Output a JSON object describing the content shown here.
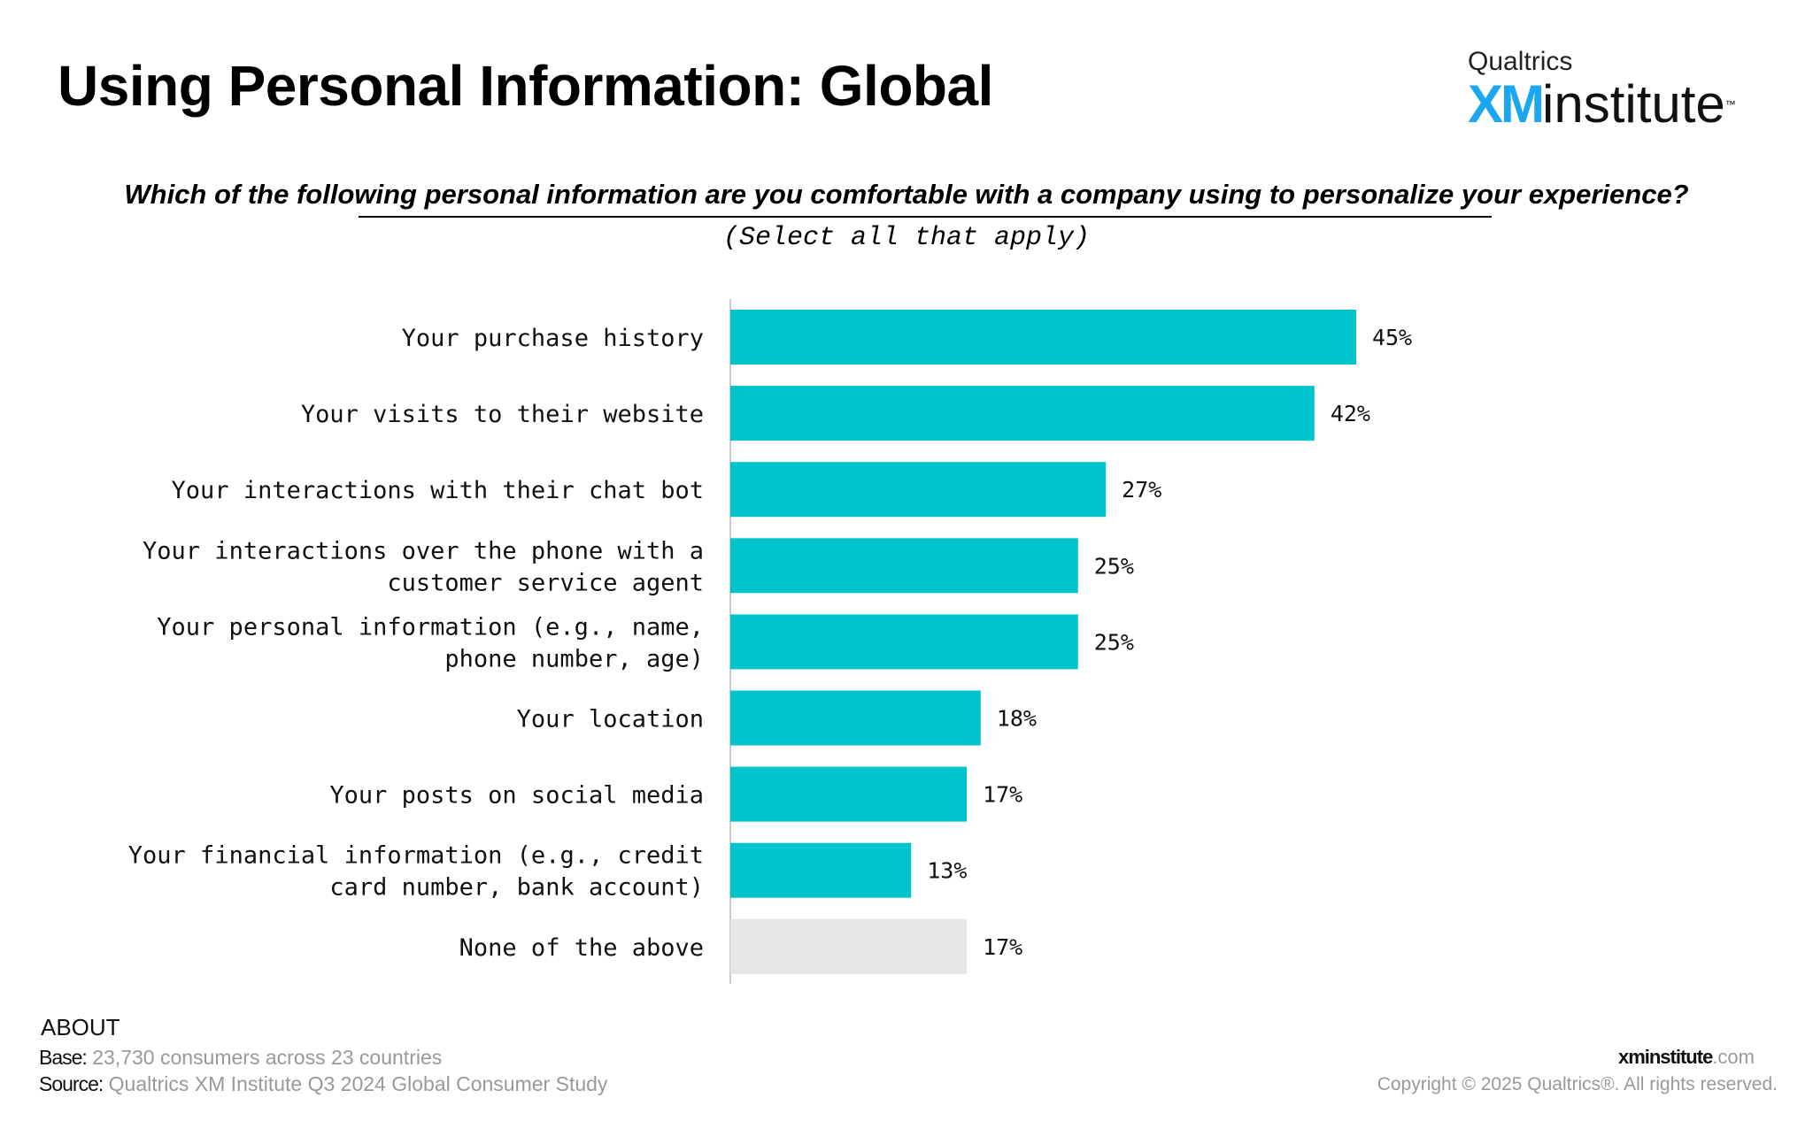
{
  "title": "Using Personal Information: Global",
  "logo": {
    "top_text": "Qualtrics",
    "xm": "XM",
    "institute": "institute",
    "tm": "™"
  },
  "question": "Which of the following personal information are you comfortable with a company using to personalize your experience?",
  "instruction": "(Select all that apply)",
  "chart_data": {
    "type": "bar",
    "orientation": "horizontal",
    "categories": [
      [
        "Your purchase history"
      ],
      [
        "Your visits to their website"
      ],
      [
        "Your interactions with their chat bot"
      ],
      [
        "Your interactions over the phone with a",
        "customer service agent"
      ],
      [
        "Your personal information (e.g., name,",
        "phone number, age)"
      ],
      [
        "Your location"
      ],
      [
        "Your posts on social media"
      ],
      [
        "Your financial information (e.g., credit",
        "card number, bank account)"
      ],
      [
        "None of the above"
      ]
    ],
    "values": [
      45,
      42,
      27,
      25,
      25,
      18,
      17,
      13,
      17
    ],
    "value_labels": [
      "45%",
      "42%",
      "27%",
      "25%",
      "25%",
      "18%",
      "17%",
      "13%",
      "17%"
    ],
    "colors": [
      "#00c4cc",
      "#00c4cc",
      "#00c4cc",
      "#00c4cc",
      "#00c4cc",
      "#00c4cc",
      "#00c4cc",
      "#00c4cc",
      "#e6e6e6"
    ],
    "xlim": [
      0,
      100
    ],
    "grid": false,
    "legend": "none"
  },
  "about": {
    "heading": "ABOUT",
    "base_label": "Base:",
    "base_value": "23,730 consumers across 23 countries",
    "source_label": "Source:",
    "source_value": "Qualtrics XM Institute Q3 2024 Global Consumer Study"
  },
  "footer": {
    "site_bold": "xminstitute",
    "site_rest": ".com",
    "copyright": "Copyright © 2025 Qualtrics®. All rights reserved."
  }
}
